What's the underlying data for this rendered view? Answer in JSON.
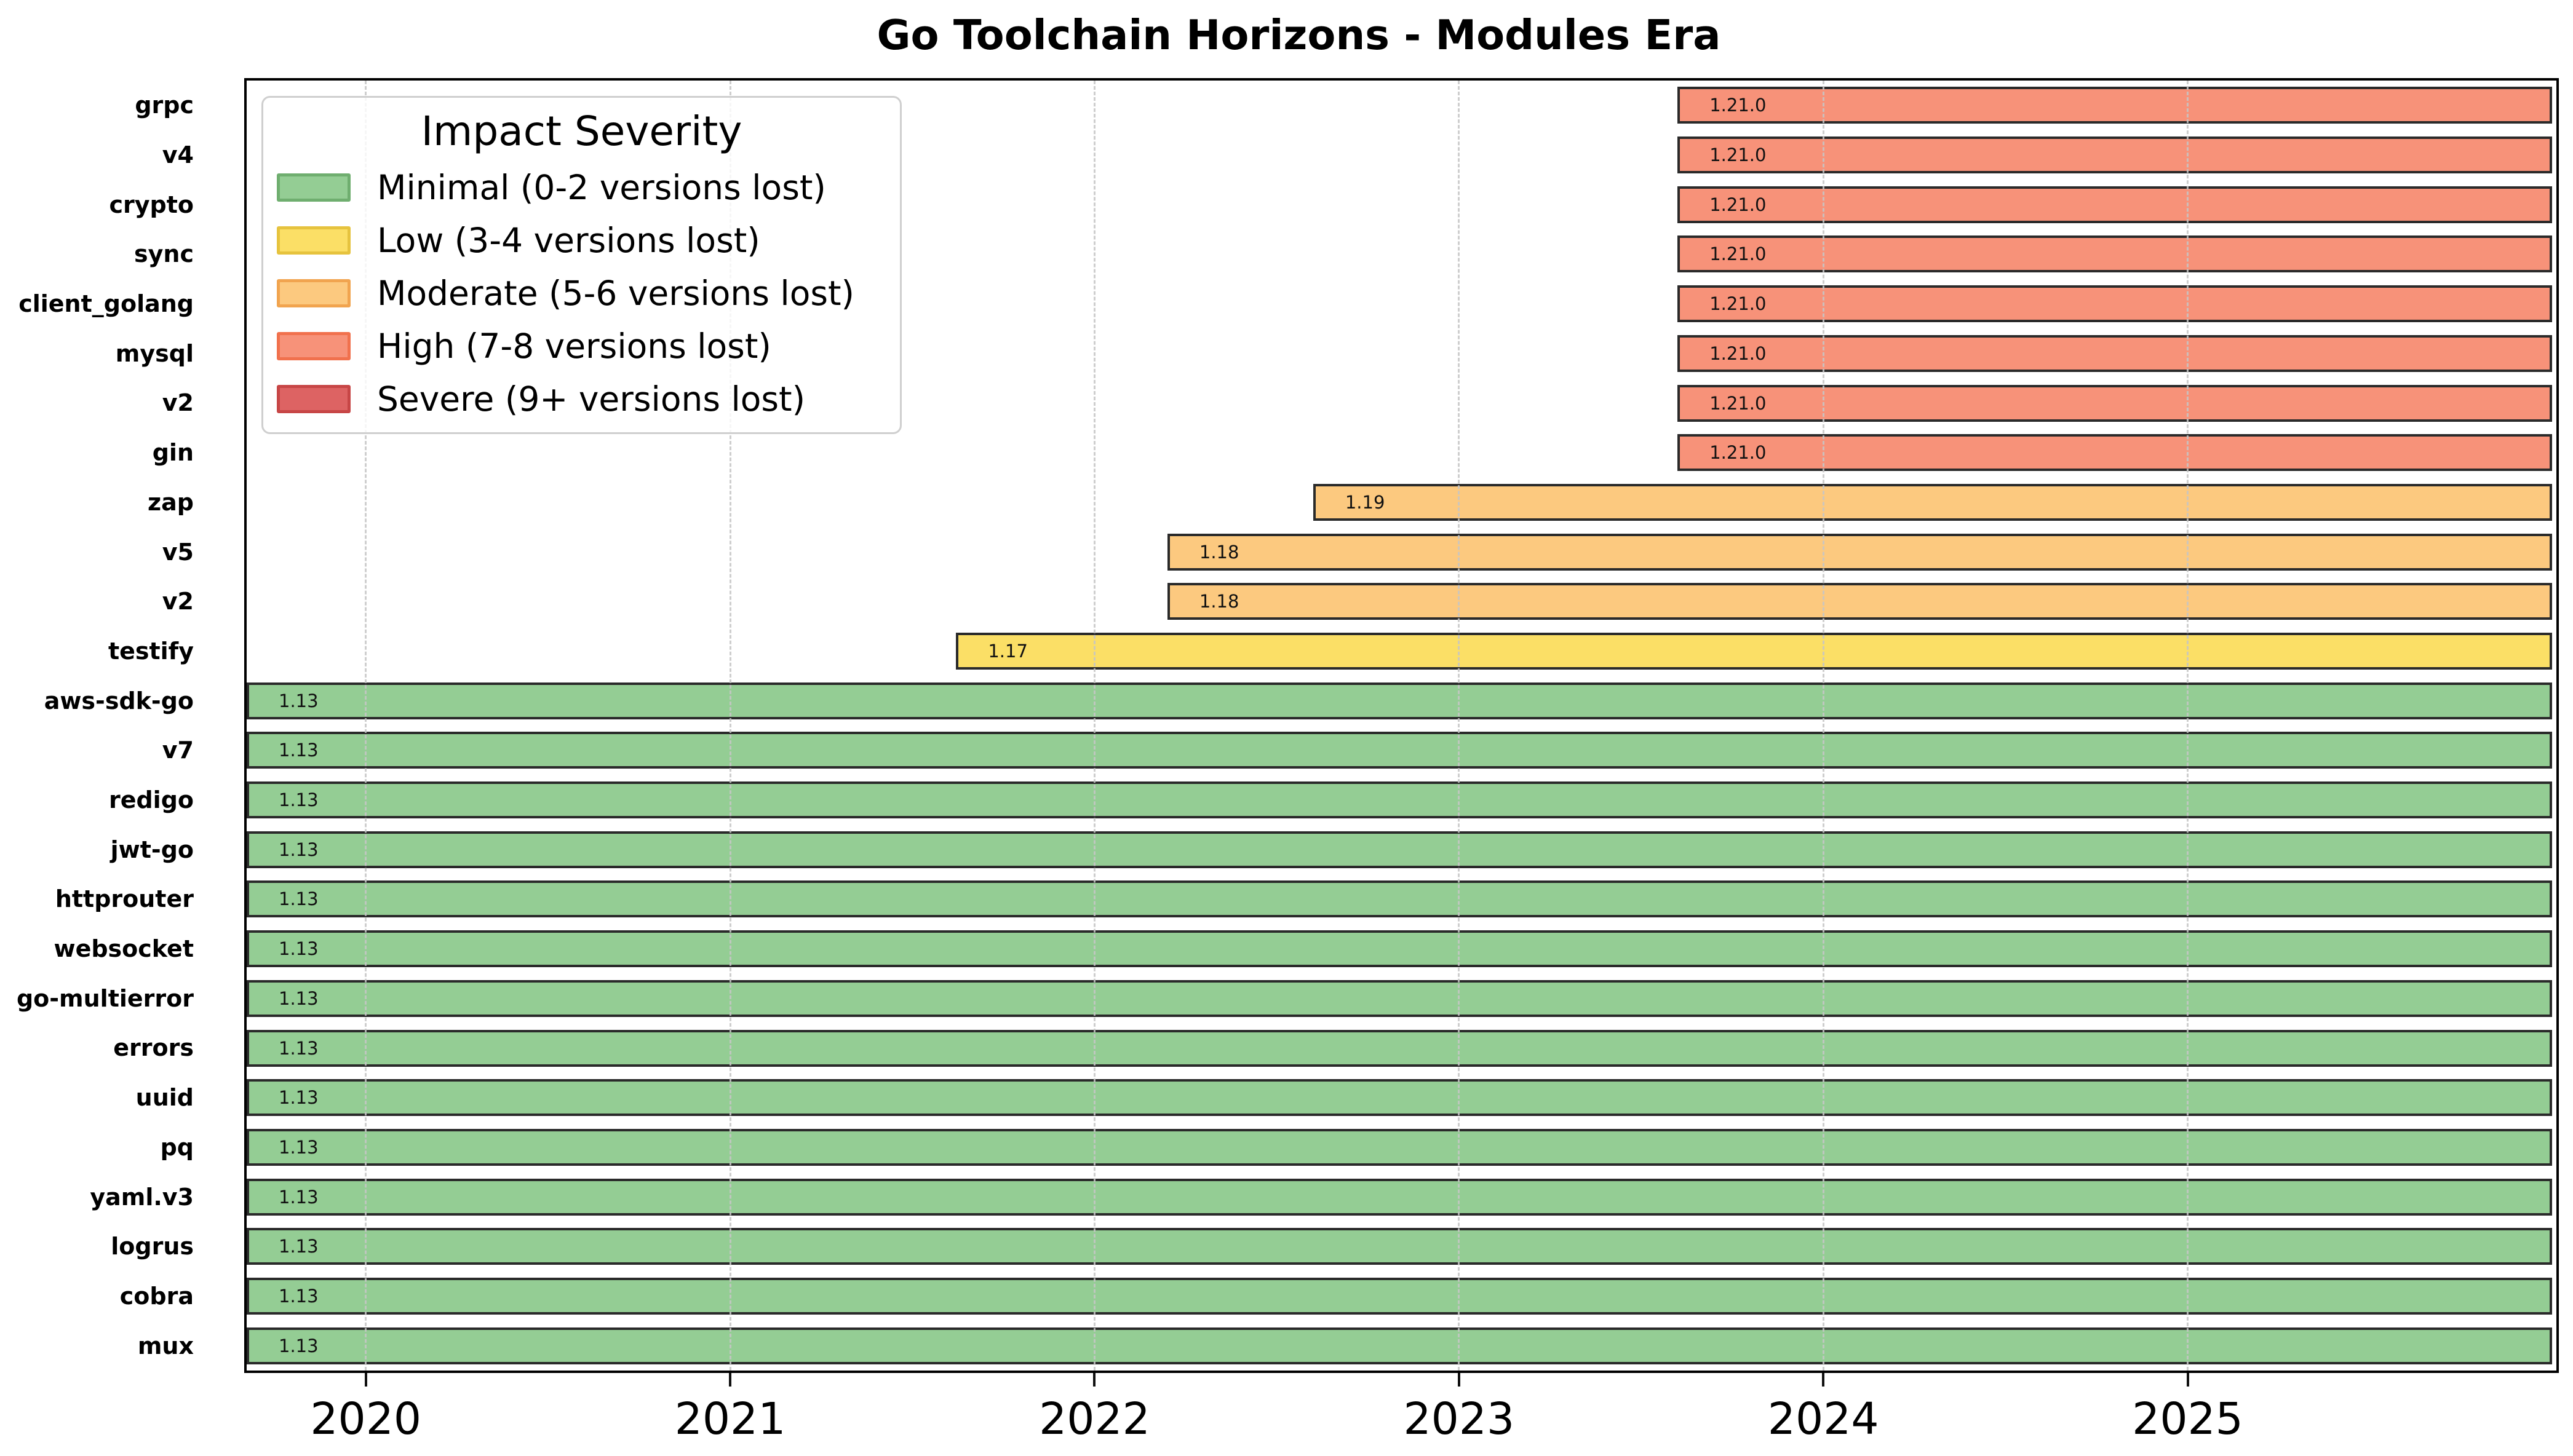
{
  "title": "Go Toolchain Horizons - Modules Era",
  "legend": {
    "title": "Impact Severity",
    "items": [
      {
        "severity": "minimal",
        "label": "Minimal (0-2 versions lost)",
        "fill": "#94cd94",
        "border": "#6fae6f"
      },
      {
        "severity": "low",
        "label": "Low (3-4 versions lost)",
        "fill": "#fbdf66",
        "border": "#e6c33e"
      },
      {
        "severity": "moderate",
        "label": "Moderate (5-6 versions lost)",
        "fill": "#fcc97f",
        "border": "#f1a44f"
      },
      {
        "severity": "high",
        "label": "High (7-8 versions lost)",
        "fill": "#f79279",
        "border": "#f1714d"
      },
      {
        "severity": "severe",
        "label": "Severe (9+ versions lost)",
        "fill": "#dd6363",
        "border": "#c74646"
      }
    ]
  },
  "chart_data": {
    "type": "bar",
    "orientation": "horizontal",
    "title": "Go Toolchain Horizons - Modules Era",
    "bar_edge_color": "#2a2a2a",
    "grid": "dashed-vertical",
    "x_axis": {
      "range": [
        2019.673,
        2026.012
      ],
      "tick_values": [
        2020,
        2021,
        2022,
        2023,
        2024,
        2025
      ],
      "tick_labels": [
        "2020",
        "2021",
        "2022",
        "2023",
        "2024",
        "2025"
      ]
    },
    "bars": [
      {
        "module": "grpc",
        "severity": "high",
        "label": "1.21.0",
        "start": 2023.6,
        "end": 2026.0
      },
      {
        "module": "v4",
        "severity": "high",
        "label": "1.21.0",
        "start": 2023.6,
        "end": 2026.0
      },
      {
        "module": "crypto",
        "severity": "high",
        "label": "1.21.0",
        "start": 2023.6,
        "end": 2026.0
      },
      {
        "module": "sync",
        "severity": "high",
        "label": "1.21.0",
        "start": 2023.6,
        "end": 2026.0
      },
      {
        "module": "client_golang",
        "severity": "high",
        "label": "1.21.0",
        "start": 2023.6,
        "end": 2026.0
      },
      {
        "module": "mysql",
        "severity": "high",
        "label": "1.21.0",
        "start": 2023.6,
        "end": 2026.0
      },
      {
        "module": "v2",
        "severity": "high",
        "label": "1.21.0",
        "start": 2023.6,
        "end": 2026.0
      },
      {
        "module": "gin",
        "severity": "high",
        "label": "1.21.0",
        "start": 2023.6,
        "end": 2026.0
      },
      {
        "module": "zap",
        "severity": "moderate",
        "label": "1.19",
        "start": 2022.6,
        "end": 2026.0
      },
      {
        "module": "v5",
        "severity": "moderate",
        "label": "1.18",
        "start": 2022.2,
        "end": 2026.0
      },
      {
        "module": "v2",
        "severity": "moderate",
        "label": "1.18",
        "start": 2022.2,
        "end": 2026.0
      },
      {
        "module": "testify",
        "severity": "low",
        "label": "1.17",
        "start": 2021.62,
        "end": 2026.0
      },
      {
        "module": "aws-sdk-go",
        "severity": "minimal",
        "label": "1.13",
        "start": 2019.673,
        "end": 2026.0
      },
      {
        "module": "v7",
        "severity": "minimal",
        "label": "1.13",
        "start": 2019.673,
        "end": 2026.0
      },
      {
        "module": "redigo",
        "severity": "minimal",
        "label": "1.13",
        "start": 2019.673,
        "end": 2026.0
      },
      {
        "module": "jwt-go",
        "severity": "minimal",
        "label": "1.13",
        "start": 2019.673,
        "end": 2026.0
      },
      {
        "module": "httprouter",
        "severity": "minimal",
        "label": "1.13",
        "start": 2019.673,
        "end": 2026.0
      },
      {
        "module": "websocket",
        "severity": "minimal",
        "label": "1.13",
        "start": 2019.673,
        "end": 2026.0
      },
      {
        "module": "go-multierror",
        "severity": "minimal",
        "label": "1.13",
        "start": 2019.673,
        "end": 2026.0
      },
      {
        "module": "errors",
        "severity": "minimal",
        "label": "1.13",
        "start": 2019.673,
        "end": 2026.0
      },
      {
        "module": "uuid",
        "severity": "minimal",
        "label": "1.13",
        "start": 2019.673,
        "end": 2026.0
      },
      {
        "module": "pq",
        "severity": "minimal",
        "label": "1.13",
        "start": 2019.673,
        "end": 2026.0
      },
      {
        "module": "yaml.v3",
        "severity": "minimal",
        "label": "1.13",
        "start": 2019.673,
        "end": 2026.0
      },
      {
        "module": "logrus",
        "severity": "minimal",
        "label": "1.13",
        "start": 2019.673,
        "end": 2026.0
      },
      {
        "module": "cobra",
        "severity": "minimal",
        "label": "1.13",
        "start": 2019.673,
        "end": 2026.0
      },
      {
        "module": "mux",
        "severity": "minimal",
        "label": "1.13",
        "start": 2019.673,
        "end": 2026.0
      }
    ]
  }
}
